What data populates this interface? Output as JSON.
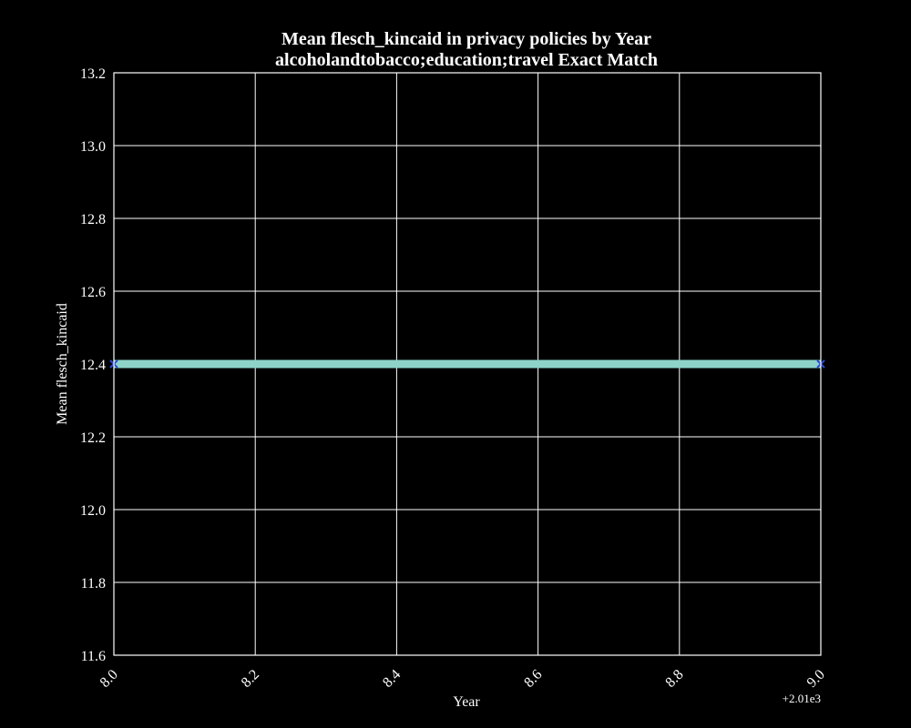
{
  "chart_data": {
    "type": "line",
    "title_line1": "Mean flesch_kincaid in privacy policies by Year",
    "title_line2": "alcoholandtobacco;education;travel Exact Match",
    "xlabel": "Year",
    "ylabel": "Mean flesch_kincaid",
    "x_offset_label": "+2.01e3",
    "xlim": [
      8.0,
      9.0
    ],
    "ylim": [
      11.6,
      13.2
    ],
    "x_ticks": [
      8.0,
      8.2,
      8.4,
      8.6,
      8.8,
      9.0
    ],
    "x_tick_labels": [
      "8.0",
      "8.2",
      "8.4",
      "8.6",
      "8.8",
      "9.0"
    ],
    "y_ticks": [
      11.6,
      11.8,
      12.0,
      12.2,
      12.4,
      12.6,
      12.8,
      13.0,
      13.2
    ],
    "y_tick_labels": [
      "11.6",
      "11.8",
      "12.0",
      "12.2",
      "12.4",
      "12.6",
      "12.8",
      "13.0",
      "13.2"
    ],
    "grid": true,
    "series": [
      {
        "x": [
          8.0,
          9.0
        ],
        "y": [
          12.4,
          12.4
        ]
      }
    ],
    "colors": {
      "background": "#000000",
      "axes": "#ffffff",
      "grid": "#ffffff",
      "line": "#8dd3c7",
      "marker": "#2b4bd8",
      "text": "#ffffff"
    }
  }
}
